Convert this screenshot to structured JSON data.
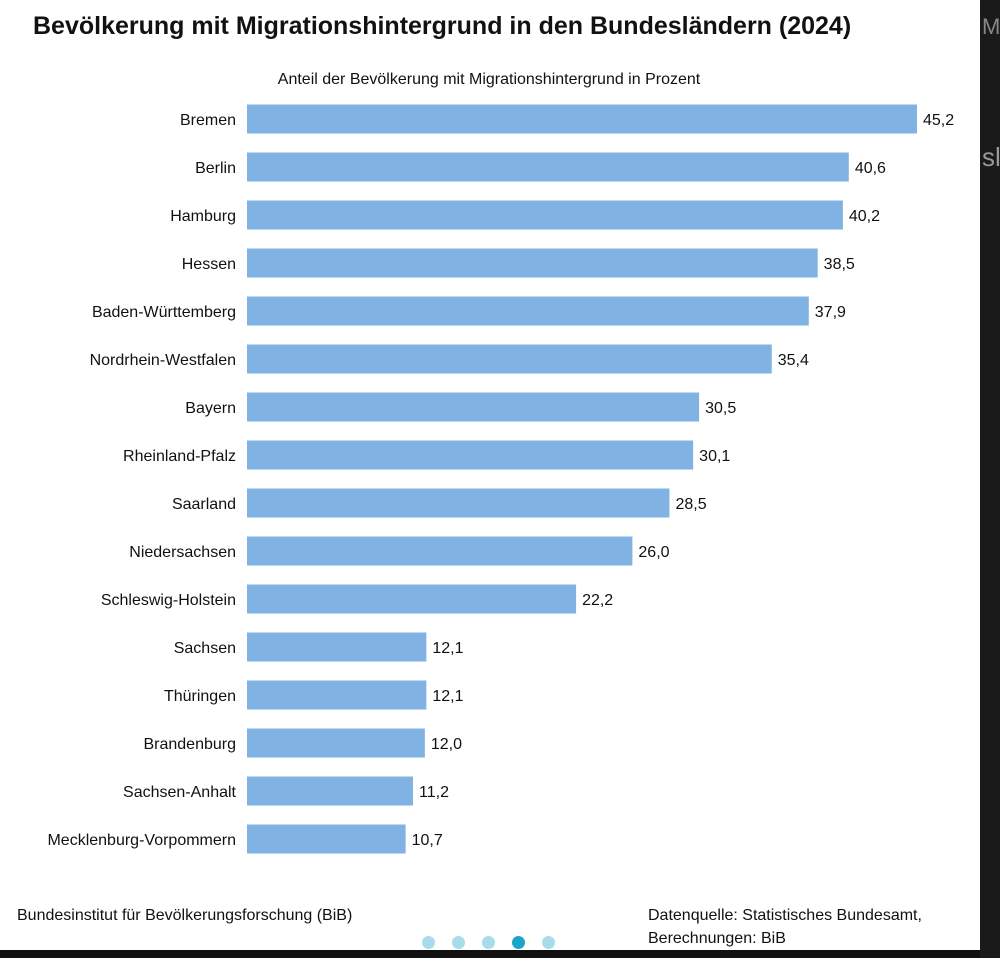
{
  "side_text": {
    "top": "M",
    "middle": "sl"
  },
  "chart_data": {
    "type": "bar",
    "orientation": "horizontal",
    "title": "Bevölkerung mit Migrationshintergrund in den Bundesländern (2024)",
    "subtitle": "Anteil der Bevölkerung mit Migrationshintergrund in Prozent",
    "categories": [
      "Bremen",
      "Berlin",
      "Hamburg",
      "Hessen",
      "Baden-Württemberg",
      "Nordrhein-Westfalen",
      "Bayern",
      "Rheinland-Pfalz",
      "Saarland",
      "Niedersachsen",
      "Schleswig-Holstein",
      "Sachsen",
      "Thüringen",
      "Brandenburg",
      "Sachsen-Anhalt",
      "Mecklenburg-Vorpommern"
    ],
    "values": [
      45.2,
      40.6,
      40.2,
      38.5,
      37.9,
      35.4,
      30.5,
      30.1,
      28.5,
      26.0,
      22.2,
      12.1,
      12.1,
      12.0,
      11.2,
      10.7
    ],
    "data_labels": [
      "45,2",
      "40,6",
      "40,2",
      "38,5",
      "37,9",
      "35,4",
      "30,5",
      "30,1",
      "28,5",
      "26,0",
      "22,2",
      "12,1",
      "12,1",
      "12,0",
      "11,2",
      "10,7"
    ],
    "xlabel": "",
    "ylabel": "",
    "xlim": [
      0,
      45.2
    ],
    "grid": false,
    "bar_color": "#80B2E4"
  },
  "footer": {
    "left": "Bundesinstitut für Bevölkerungsforschung (BiB)",
    "right_line1": "Datenquelle: Statistisches Bundesamt,",
    "right_line2": "Berechnungen: BiB"
  },
  "carousel": {
    "count": 5,
    "active_index": 3,
    "dot_color": "#A8DCEB",
    "active_color": "#1AA6C8"
  }
}
